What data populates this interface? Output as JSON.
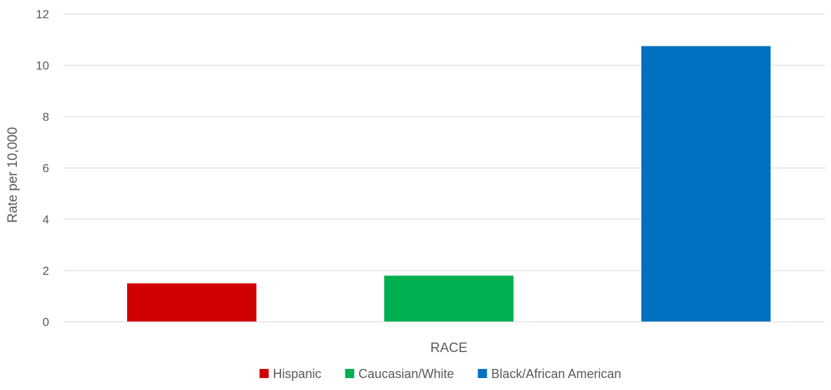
{
  "chart_data": {
    "type": "bar",
    "title": "",
    "xlabel": "RACE",
    "ylabel": "Rate per 10,000",
    "ylim": [
      0,
      12
    ],
    "yticks": [
      0,
      2,
      4,
      6,
      8,
      10,
      12
    ],
    "grid": true,
    "legend_position": "bottom",
    "categories": [
      "RACE"
    ],
    "series": [
      {
        "name": "Hispanic",
        "values": [
          1.5
        ],
        "color": "#d00000"
      },
      {
        "name": "Caucasian/White",
        "values": [
          1.8
        ],
        "color": "#00b050"
      },
      {
        "name": "Black/African American",
        "values": [
          10.75
        ],
        "color": "#0070c0"
      }
    ]
  }
}
